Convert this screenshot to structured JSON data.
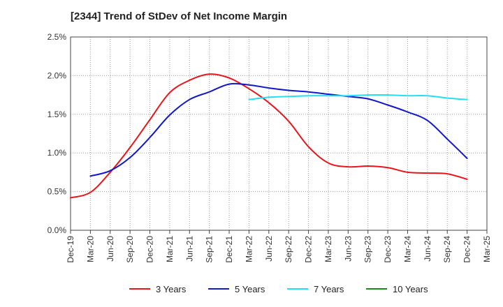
{
  "chart_data": {
    "type": "line",
    "title": "[2344]  Trend of StDev of Net Income Margin",
    "xlabel": "",
    "ylabel": "",
    "x": [
      "Dec-19",
      "Mar-20",
      "Jun-20",
      "Sep-20",
      "Dec-20",
      "Mar-21",
      "Jun-21",
      "Sep-21",
      "Dec-21",
      "Mar-22",
      "Jun-22",
      "Sep-22",
      "Dec-22",
      "Mar-23",
      "Jun-23",
      "Sep-23",
      "Dec-23",
      "Mar-24",
      "Jun-24",
      "Sep-24",
      "Dec-24",
      "Mar-25"
    ],
    "y_ticks": [
      "0.0%",
      "0.5%",
      "1.0%",
      "1.5%",
      "2.0%",
      "2.5%"
    ],
    "ylim": [
      0,
      2.5
    ],
    "y_unit": "%",
    "grid": true,
    "legend_position": "bottom",
    "series": [
      {
        "name": "3 Years",
        "color": "#e8161b",
        "values": [
          0.42,
          0.49,
          0.75,
          1.07,
          1.43,
          1.78,
          1.94,
          2.02,
          1.97,
          1.83,
          1.65,
          1.41,
          1.08,
          0.87,
          0.82,
          0.83,
          0.81,
          0.75,
          0.74,
          0.73,
          0.66,
          null
        ]
      },
      {
        "name": "5 Years",
        "color": "#1018c8",
        "values": [
          null,
          0.7,
          0.77,
          0.94,
          1.2,
          1.49,
          1.69,
          1.79,
          1.89,
          1.88,
          1.84,
          1.81,
          1.79,
          1.76,
          1.73,
          1.7,
          1.62,
          1.53,
          1.42,
          1.18,
          0.93,
          null
        ]
      },
      {
        "name": "7 Years",
        "color": "#23dff0",
        "values": [
          null,
          null,
          null,
          null,
          null,
          null,
          null,
          null,
          null,
          1.69,
          1.72,
          1.73,
          1.74,
          1.74,
          1.74,
          1.75,
          1.75,
          1.74,
          1.74,
          1.71,
          1.69,
          null
        ]
      },
      {
        "name": "10 Years",
        "color": "#1a8a1a",
        "values": [
          null,
          null,
          null,
          null,
          null,
          null,
          null,
          null,
          null,
          null,
          null,
          null,
          null,
          null,
          null,
          null,
          null,
          null,
          null,
          null,
          null,
          null
        ]
      }
    ]
  }
}
